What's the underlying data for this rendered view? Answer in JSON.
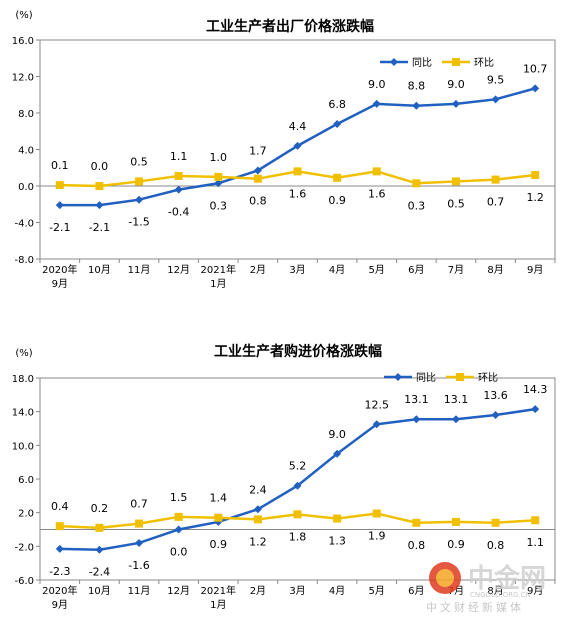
{
  "chart_data": [
    {
      "type": "line",
      "title": "工业生产者出厂价格涨跌幅",
      "unit": "(%)",
      "categories": [
        [
          "2020年",
          "9月"
        ],
        [
          "10月"
        ],
        [
          "11月"
        ],
        [
          "12月"
        ],
        [
          "2021年",
          "1月"
        ],
        [
          "2月"
        ],
        [
          "3月"
        ],
        [
          "4月"
        ],
        [
          "5月"
        ],
        [
          "6月"
        ],
        [
          "7月"
        ],
        [
          "8月"
        ],
        [
          "9月"
        ]
      ],
      "ylim": [
        -8.0,
        16.0
      ],
      "yticks": [
        "-8.0",
        "-4.0",
        "0.0",
        "4.0",
        "8.0",
        "12.0",
        "16.0"
      ],
      "legend_position": "top-right",
      "grid": false,
      "series": [
        {
          "name": "同比",
          "color": "#2060c0",
          "values": [
            -2.1,
            -2.1,
            -1.5,
            -0.4,
            0.3,
            1.7,
            4.4,
            6.8,
            9.0,
            8.8,
            9.0,
            9.5,
            10.7
          ],
          "labels": [
            "-2.1",
            "-2.1",
            "-1.5",
            "-0.4",
            "0.3",
            "1.7",
            "4.4",
            "6.8",
            "9.0",
            "8.8",
            "9.0",
            "9.5",
            "10.7"
          ]
        },
        {
          "name": "环比",
          "color": "#f0c000",
          "values": [
            0.1,
            0.0,
            0.5,
            1.1,
            1.0,
            0.8,
            1.6,
            0.9,
            1.6,
            0.3,
            0.5,
            0.7,
            1.2
          ],
          "labels": [
            "0.1",
            "0.0",
            "0.5",
            "1.1",
            "1.0",
            "0.8",
            "1.6",
            "0.9",
            "1.6",
            "0.3",
            "0.5",
            "0.7",
            "1.2"
          ]
        }
      ]
    },
    {
      "type": "line",
      "title": "工业生产者购进价格涨跌幅",
      "unit": "(%)",
      "categories": [
        [
          "2020年",
          "9月"
        ],
        [
          "10月"
        ],
        [
          "11月"
        ],
        [
          "12月"
        ],
        [
          "2021年",
          "1月"
        ],
        [
          "2月"
        ],
        [
          "3月"
        ],
        [
          "4月"
        ],
        [
          "5月"
        ],
        [
          "6月"
        ],
        [
          "7月"
        ],
        [
          "8月"
        ],
        [
          "9月"
        ]
      ],
      "ylim": [
        -6.0,
        18.0
      ],
      "yticks": [
        "-6.0",
        "-2.0",
        "2.0",
        "6.0",
        "10.0",
        "14.0",
        "18.0"
      ],
      "legend_position": "top-right",
      "grid": false,
      "series": [
        {
          "name": "同比",
          "color": "#2060c0",
          "values": [
            -2.3,
            -2.4,
            -1.6,
            0.0,
            0.9,
            2.4,
            5.2,
            9.0,
            12.5,
            13.1,
            13.1,
            13.6,
            14.3
          ],
          "labels": [
            "-2.3",
            "-2.4",
            "-1.6",
            "0.0",
            "0.9",
            "2.4",
            "5.2",
            "9.0",
            "12.5",
            "13.1",
            "13.1",
            "13.6",
            "14.3"
          ]
        },
        {
          "name": "环比",
          "color": "#f0c000",
          "values": [
            0.4,
            0.2,
            0.7,
            1.5,
            1.4,
            1.2,
            1.8,
            1.3,
            1.9,
            0.8,
            0.9,
            0.8,
            1.1
          ],
          "labels": [
            "0.4",
            "0.2",
            "0.7",
            "1.5",
            "1.4",
            "1.2",
            "1.8",
            "1.3",
            "1.9",
            "0.8",
            "0.9",
            "0.8",
            "1.1"
          ]
        }
      ]
    }
  ],
  "watermark": {
    "name": "中金网",
    "domain": "CNGOLD.ORG.CN",
    "slogan": "中文财经新媒体",
    "logo_colors": [
      "#e03c1e",
      "#f5a623"
    ]
  }
}
